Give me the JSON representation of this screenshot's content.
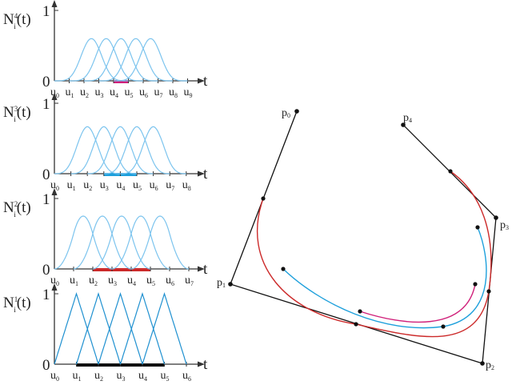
{
  "colors": {
    "basis": "#7cc4ee",
    "basis_linear": "#1e90d0",
    "axis": "#333333",
    "degree4_span": "#d0207a",
    "degree3_span": "#1ea0dc",
    "degree2_span": "#cc2a2a",
    "degree1_span": "#111111",
    "polygon": "#111111"
  },
  "charts": [
    {
      "degree": 4,
      "label_base": "N",
      "label_sub": "i",
      "label_sup": "4",
      "label_arg": "(t)",
      "y_one": "1",
      "y_zero": "0",
      "x_label": "t",
      "knot_symbol": "u",
      "knots": [
        "0",
        "1",
        "2",
        "3",
        "4",
        "5",
        "6",
        "7",
        "8",
        "9"
      ],
      "span": [
        4,
        5
      ],
      "span_color_key": "degree4_span"
    },
    {
      "degree": 3,
      "label_base": "N",
      "label_sub": "i",
      "label_sup": "3",
      "label_arg": "(t)",
      "y_one": "1",
      "y_zero": "0",
      "x_label": "t",
      "knot_symbol": "u",
      "knots": [
        "0",
        "1",
        "2",
        "3",
        "4",
        "5",
        "6",
        "7",
        "8"
      ],
      "span": [
        3,
        5
      ],
      "span_color_key": "degree3_span"
    },
    {
      "degree": 2,
      "label_base": "N",
      "label_sub": "i",
      "label_sup": "2",
      "label_arg": "(t)",
      "y_one": "1",
      "y_zero": "0",
      "x_label": "t",
      "knot_symbol": "u",
      "knots": [
        "0",
        "1",
        "2",
        "3",
        "4",
        "5",
        "6",
        "7"
      ],
      "span": [
        2,
        5
      ],
      "span_color_key": "degree2_span"
    },
    {
      "degree": 1,
      "label_base": "N",
      "label_sub": "i",
      "label_sup": "1",
      "label_arg": "(t)",
      "y_one": "1",
      "y_zero": "0",
      "x_label": "t",
      "knot_symbol": "u",
      "knots": [
        "0",
        "1",
        "2",
        "3",
        "4",
        "5",
        "6"
      ],
      "span": [
        1,
        5
      ],
      "span_color_key": "degree1_span"
    }
  ],
  "control_points": [
    {
      "base": "p",
      "sub": "0"
    },
    {
      "base": "p",
      "sub": "1"
    },
    {
      "base": "p",
      "sub": "2"
    },
    {
      "base": "p",
      "sub": "3"
    },
    {
      "base": "p",
      "sub": "4"
    }
  ]
}
